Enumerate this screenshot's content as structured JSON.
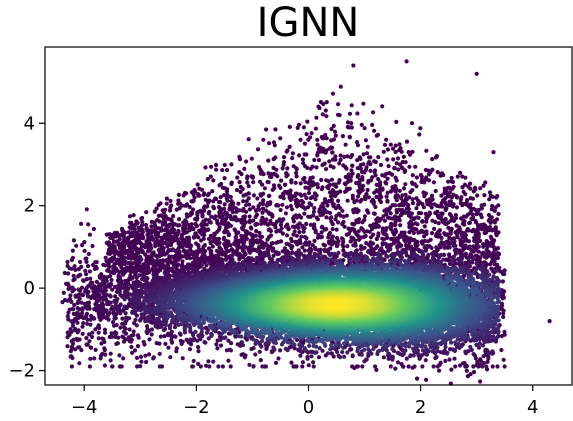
{
  "chart_data": {
    "type": "scatter",
    "title": "IGNN",
    "xlabel": "",
    "ylabel": "",
    "xlim": [
      -4.7,
      4.7
    ],
    "ylim": [
      -2.35,
      5.85
    ],
    "xticks": [
      -4,
      -2,
      0,
      2,
      4
    ],
    "yticks": [
      -2,
      0,
      2,
      4
    ],
    "xtick_labels": [
      "−4",
      "−2",
      "0",
      "2",
      "4"
    ],
    "ytick_labels": [
      "−2",
      "0",
      "2",
      "4"
    ],
    "grid": false,
    "legend": "none",
    "colormap": "viridis",
    "color_encoding": "point density",
    "colormap_stops": [
      "#440154",
      "#3b528b",
      "#21918c",
      "#5ec962",
      "#fde725"
    ],
    "distribution": {
      "dense_band_center": [
        0.5,
        -0.4
      ],
      "dense_band_x_range": [
        -4.4,
        3.4
      ],
      "dense_band_y_spread": 0.45,
      "band_slope": -0.05,
      "upper_scatter_y_range": [
        0.5,
        5.5
      ],
      "outliers": [
        [
          1.75,
          5.5
        ],
        [
          4.3,
          -0.8
        ],
        [
          -4.3,
          0.1
        ],
        [
          3.3,
          3.3
        ],
        [
          3.0,
          5.2
        ],
        [
          0.8,
          5.4
        ]
      ]
    }
  }
}
